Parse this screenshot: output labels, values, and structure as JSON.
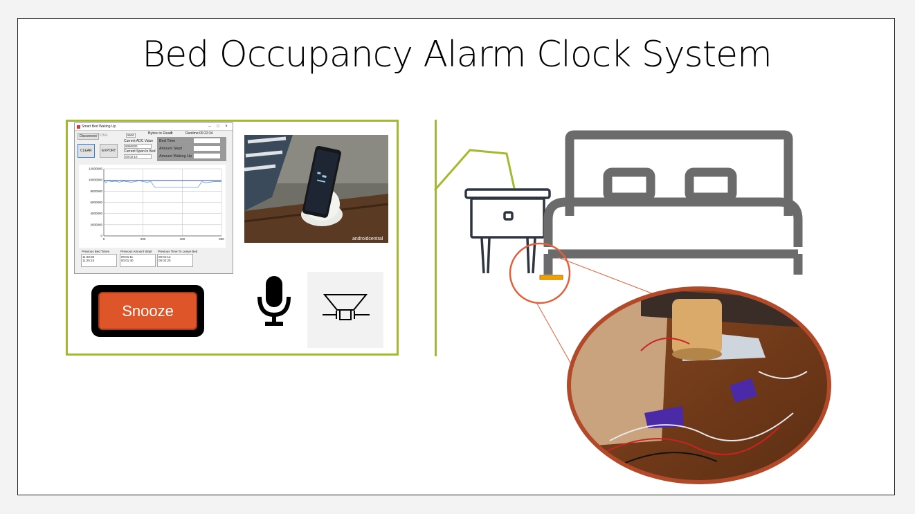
{
  "slide": {
    "title": "Bed Occupancy Alarm Clock System"
  },
  "app_window": {
    "title": "Smart Bed Waking Up",
    "disconnect_label": "Disconnect",
    "port_value": "COM4",
    "baud_value": "9600",
    "bytes_to_read_label": "Bytes to Read:",
    "bytes_to_read_value": "1",
    "runtime_label": "Runtime:",
    "runtime_value": "00:22:34",
    "clear_label": "CLEAR",
    "export_label": "EXPORT",
    "current_adc_label": "Current ADC Value",
    "current_adc_value": "9080000",
    "current_span_label": "Current Span In Bed",
    "current_span_value": "00:02:10",
    "bed_time_label": "Bed Time",
    "amount_slept_label": "Amount Slept",
    "amount_waking_label": "Amount Waking Up",
    "prev_bed_times_label": "Previous Bed Times",
    "prev_bed_times_values": [
      "11:20:30",
      "11:25:10"
    ],
    "prev_amount_slept_label": "Previous Amount Slept",
    "prev_amount_slept_values": [
      "00:01:11",
      "00:01:40"
    ],
    "prev_time_leave_label": "Previous Time To Leave Bed",
    "prev_time_leave_values": [
      "00:01:12",
      "00:02:20"
    ]
  },
  "chart_data": {
    "type": "line",
    "y_ticks": [
      "12000000",
      "10000000",
      "8000000",
      "6000000",
      "4000000",
      "2000000",
      "0"
    ],
    "x_ticks": [
      "0",
      "200",
      "400",
      "600"
    ],
    "ylim": [
      0,
      12000000
    ],
    "xlim": [
      0,
      600
    ],
    "series": [
      {
        "x": [
          0,
          10,
          20,
          40,
          60,
          80,
          100,
          120,
          140,
          160,
          180,
          200,
          220,
          240,
          260,
          280,
          300,
          320,
          340,
          360,
          380,
          400,
          420,
          440,
          460,
          480,
          500,
          520,
          540,
          560,
          580,
          600
        ],
        "values": [
          10000000,
          9500000,
          9900000,
          9700000,
          9800000,
          9600000,
          9800000,
          9700000,
          9600000,
          9700000,
          9900000,
          9700000,
          9600000,
          9700000,
          8700000,
          8700000,
          8700000,
          8700000,
          8700000,
          8700000,
          8700000,
          8700000,
          8700000,
          8700000,
          8700000,
          8700000,
          9700000,
          9500000,
          9600000,
          9700000,
          9700000,
          9700000
        ]
      },
      {
        "x": [
          0,
          600
        ],
        "values": [
          9900000,
          9900000
        ]
      }
    ],
    "colors": [
      "#4a90d9",
      "#1f3d99"
    ]
  },
  "photo": {
    "watermark": "androidcentral"
  },
  "snooze": {
    "label": "Snooze"
  },
  "icons": {
    "mic": "microphone-icon",
    "speaker": "speaker-symbol-icon",
    "bed": "bed-icon",
    "nightstand": "nightstand-icon"
  },
  "colors": {
    "accent": "#a4b92f",
    "snooze": "#dd5528",
    "sensor": "#f0a000",
    "callout": "#e0603a",
    "bed": "#6b6b6b"
  }
}
